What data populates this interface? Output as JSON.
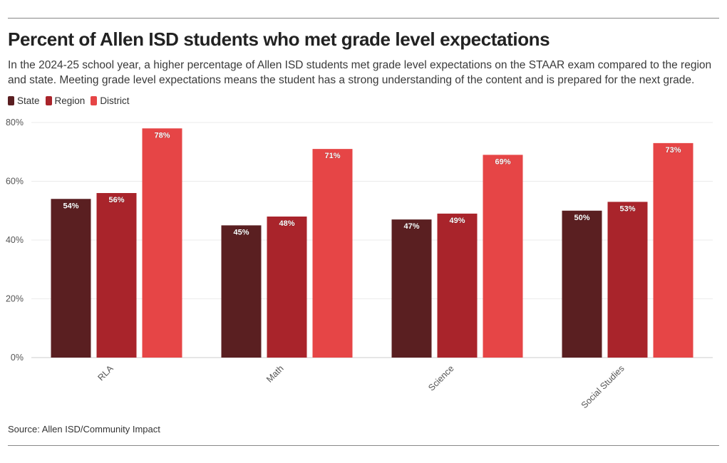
{
  "header": {
    "title": "Percent of Allen ISD students who met grade level expectations",
    "subtitle": "In the 2024-25 school year, a higher percentage of Allen ISD students met grade level expectations on the STAAR exam compared to the region and state. Meeting grade level expectations means the student has a strong understanding of the content and is prepared for the next grade."
  },
  "footer": {
    "source": "Source: Allen ISD/Community Impact"
  },
  "chart_data": {
    "type": "bar",
    "categories": [
      "RLA",
      "Math",
      "Science",
      "Social Studies"
    ],
    "series": [
      {
        "name": "State",
        "color": "#5a1f21",
        "values": [
          54,
          45,
          47,
          50
        ]
      },
      {
        "name": "Region",
        "color": "#a9242b",
        "values": [
          56,
          48,
          49,
          53
        ]
      },
      {
        "name": "District",
        "color": "#e64546",
        "values": [
          78,
          71,
          69,
          73
        ]
      }
    ],
    "value_suffix": "%",
    "ylim": [
      0,
      80
    ],
    "yticks": [
      "0%",
      "20%",
      "40%",
      "60%",
      "80%"
    ],
    "ytick_values": [
      0,
      20,
      40,
      60,
      80
    ],
    "grid": true,
    "legend_position": "top-left",
    "xlabel": "",
    "ylabel": ""
  }
}
